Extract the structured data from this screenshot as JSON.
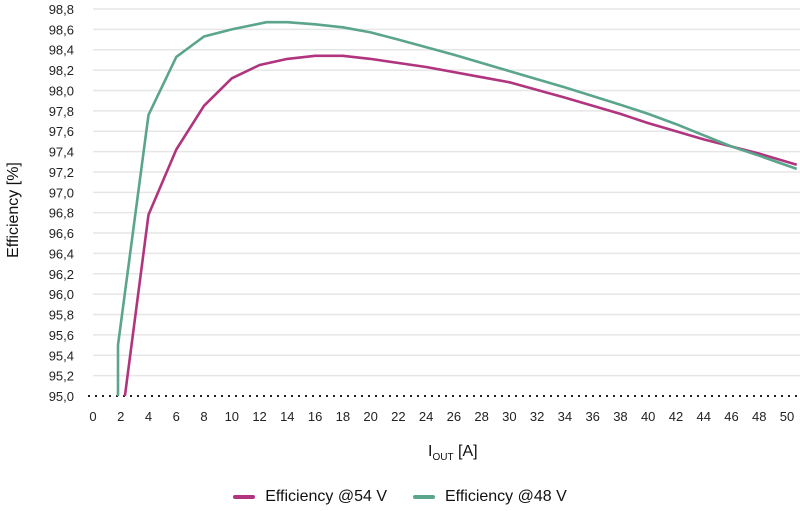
{
  "chart_data": {
    "type": "line",
    "title": "",
    "xlabel_main": "I",
    "xlabel_sub": "OUT",
    "xlabel_unit": " [A]",
    "ylabel": "Efficiency [%]",
    "xlim": [
      0,
      51
    ],
    "ylim": [
      95.0,
      98.8
    ],
    "x_ticks": [
      "0",
      "2",
      "4",
      "6",
      "8",
      "10",
      "12",
      "14",
      "16",
      "18",
      "20",
      "22",
      "24",
      "26",
      "28",
      "30",
      "32",
      "34",
      "36",
      "38",
      "40",
      "42",
      "44",
      "46",
      "48",
      "50"
    ],
    "y_ticks": [
      "95,0",
      "95,2",
      "95,4",
      "95,6",
      "95,8",
      "96,0",
      "96,2",
      "96,4",
      "96,6",
      "96,8",
      "97,0",
      "97,2",
      "97,4",
      "97,6",
      "97,8",
      "98,0",
      "98,2",
      "98,4",
      "98,6",
      "98,8"
    ],
    "grid": true,
    "legend_position": "bottom",
    "series": [
      {
        "name": "Efficiency @54 V",
        "color": "#b0357e",
        "x": [
          2.3,
          4,
          6,
          8,
          10,
          12,
          14,
          16,
          18,
          20,
          24,
          28,
          30,
          34,
          38,
          40,
          44,
          46,
          48,
          50.7
        ],
        "y": [
          95.0,
          96.78,
          97.42,
          97.85,
          98.12,
          98.25,
          98.31,
          98.34,
          98.34,
          98.31,
          98.23,
          98.13,
          98.08,
          97.93,
          97.77,
          97.68,
          97.52,
          97.45,
          97.38,
          97.27
        ]
      },
      {
        "name": "Efficiency @48 V",
        "color": "#5aa58c",
        "x": [
          1.8,
          1.8,
          4,
          6,
          8,
          10,
          12.5,
          14,
          16,
          18,
          20,
          22,
          26,
          30,
          34,
          38,
          40,
          42,
          44,
          46,
          48,
          50.7
        ],
        "y": [
          95.0,
          95.5,
          97.76,
          98.33,
          98.53,
          98.6,
          98.67,
          98.67,
          98.65,
          98.62,
          98.57,
          98.5,
          98.35,
          98.19,
          98.03,
          97.86,
          97.77,
          97.67,
          97.56,
          97.45,
          97.36,
          97.23
        ]
      }
    ]
  }
}
